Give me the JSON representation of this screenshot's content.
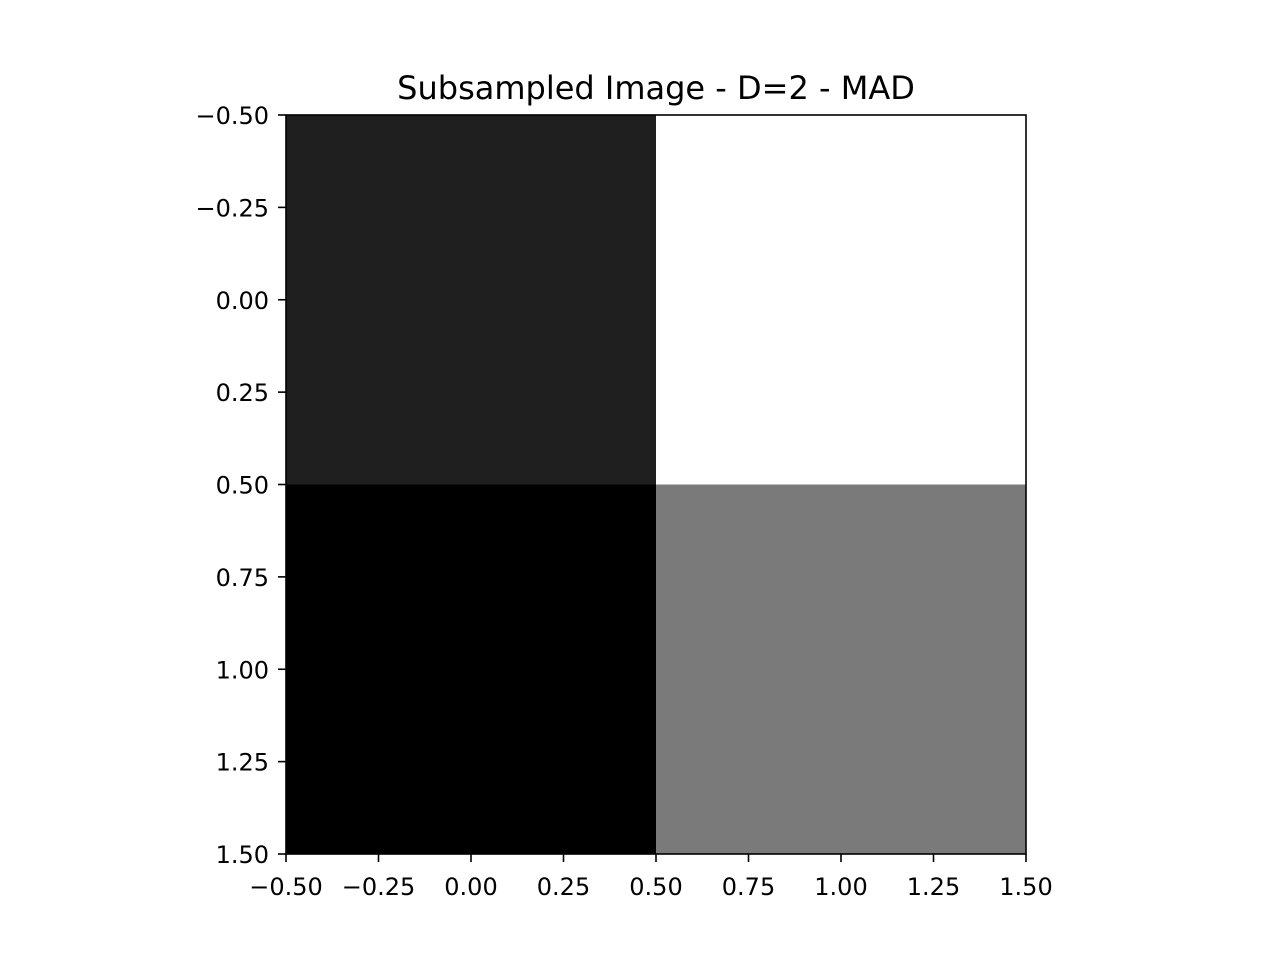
{
  "chart_data": {
    "type": "heatmap",
    "title": "Subsampled Image - D=2 - MAD",
    "xlabel": "",
    "ylabel": "",
    "colormap": "gray",
    "grid": false,
    "legend": "none",
    "xlim": [
      -0.5,
      1.5
    ],
    "ylim": [
      1.5,
      -0.5
    ],
    "value_range": [
      0,
      1
    ],
    "x_ticks": [
      -0.5,
      -0.25,
      0.0,
      0.25,
      0.5,
      0.75,
      1.0,
      1.25,
      1.5
    ],
    "x_tick_labels": [
      "−0.50",
      "−0.25",
      "0.00",
      "0.25",
      "0.50",
      "0.75",
      "1.00",
      "1.25",
      "1.50"
    ],
    "y_ticks": [
      -0.5,
      -0.25,
      0.0,
      0.25,
      0.5,
      0.75,
      1.0,
      1.25,
      1.5
    ],
    "y_tick_labels": [
      "−0.50",
      "−0.25",
      "0.00",
      "0.25",
      "0.50",
      "0.75",
      "1.00",
      "1.25",
      "1.50"
    ],
    "matrix": [
      [
        0.12,
        1.0
      ],
      [
        0.0,
        0.48
      ]
    ]
  }
}
